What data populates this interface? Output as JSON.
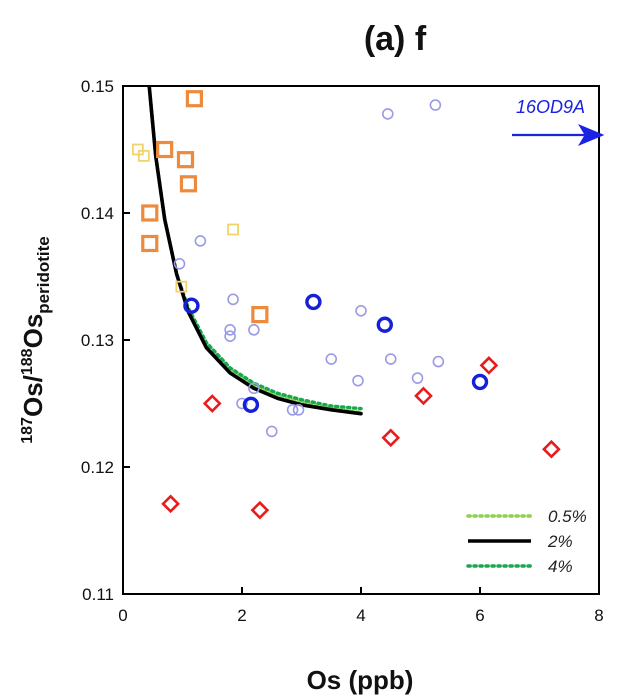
{
  "chart_data": {
    "type": "scatter",
    "title": "(a) f",
    "xlabel": "Os (ppb)",
    "ylabel": {
      "sup1": "187",
      "main1": "Os/",
      "sup2": "188",
      "main2": "Os",
      "sub": "peridotite"
    },
    "xlim": [
      0,
      8
    ],
    "ylim": [
      0.11,
      0.15
    ],
    "xticks": [
      "0",
      "2",
      "4",
      "6",
      "8"
    ],
    "yticks": [
      "0.11",
      "0.12",
      "0.13",
      "0.14",
      "0.15"
    ],
    "grid": false,
    "legend_position": "bottom-right",
    "colors": {
      "small_circle": "#9a9ae6",
      "large_circle": "#1520d8",
      "small_square": "#f2d36b",
      "large_square": "#ee8a3c",
      "diamond": "#e81c1c",
      "curve_05": "#8fd14f",
      "curve_2": "#000000",
      "curve_4": "#1aa84f",
      "annotation": "#1a22e6"
    },
    "annotation": {
      "text": "16OD9A",
      "arrow": "right"
    },
    "legend": [
      {
        "label": "0.5%",
        "style": "dotted",
        "color_key": "curve_05"
      },
      {
        "label": "2%",
        "style": "solid",
        "color_key": "curve_2"
      },
      {
        "label": "4%",
        "style": "dotted",
        "color_key": "curve_4"
      }
    ],
    "series": [
      {
        "marker": "small_circle",
        "points": [
          [
            0.95,
            0.136
          ],
          [
            1.3,
            0.1378
          ],
          [
            1.85,
            0.1332
          ],
          [
            1.8,
            0.1308
          ],
          [
            1.8,
            0.1303
          ],
          [
            2.2,
            0.1308
          ],
          [
            2.2,
            0.1262
          ],
          [
            2.0,
            0.125
          ],
          [
            2.5,
            0.1228
          ],
          [
            2.85,
            0.1245
          ],
          [
            2.95,
            0.1245
          ],
          [
            3.5,
            0.1285
          ],
          [
            3.95,
            0.1268
          ],
          [
            4.0,
            0.1323
          ],
          [
            4.45,
            0.1478
          ],
          [
            4.5,
            0.1285
          ],
          [
            4.95,
            0.127
          ],
          [
            5.25,
            0.1485
          ],
          [
            5.3,
            0.1283
          ]
        ]
      },
      {
        "marker": "large_circle",
        "points": [
          [
            1.15,
            0.1327
          ],
          [
            2.15,
            0.1249
          ],
          [
            3.2,
            0.133
          ],
          [
            4.4,
            0.1312
          ],
          [
            6.0,
            0.1267
          ]
        ]
      },
      {
        "marker": "small_square",
        "points": [
          [
            0.25,
            0.145
          ],
          [
            0.35,
            0.1445
          ],
          [
            1.85,
            0.1387
          ],
          [
            0.98,
            0.1342
          ]
        ]
      },
      {
        "marker": "large_square",
        "points": [
          [
            1.2,
            0.149
          ],
          [
            0.7,
            0.145
          ],
          [
            1.05,
            0.1442
          ],
          [
            1.1,
            0.1423
          ],
          [
            0.45,
            0.14
          ],
          [
            0.45,
            0.1376
          ],
          [
            2.3,
            0.132
          ]
        ]
      },
      {
        "marker": "diamond",
        "points": [
          [
            1.5,
            0.125
          ],
          [
            0.8,
            0.1171
          ],
          [
            2.3,
            0.1166
          ],
          [
            4.5,
            0.1223
          ],
          [
            5.05,
            0.1256
          ],
          [
            6.15,
            0.128
          ],
          [
            7.2,
            0.1214
          ]
        ]
      }
    ],
    "curves": [
      {
        "label": "0.5%",
        "color_key": "curve_05",
        "style": "dotted",
        "points": [
          [
            0.43,
            0.1505
          ],
          [
            0.55,
            0.1445
          ],
          [
            0.7,
            0.1395
          ],
          [
            0.9,
            0.1352
          ],
          [
            1.1,
            0.1323
          ],
          [
            1.4,
            0.1296
          ],
          [
            1.8,
            0.1276
          ],
          [
            2.2,
            0.1264
          ],
          [
            2.6,
            0.1256
          ],
          [
            3.0,
            0.1251
          ],
          [
            3.5,
            0.1246
          ],
          [
            4.0,
            0.1243
          ]
        ]
      },
      {
        "label": "4%",
        "color_key": "curve_4",
        "style": "dotted",
        "points": [
          [
            0.43,
            0.1505
          ],
          [
            0.55,
            0.1445
          ],
          [
            0.7,
            0.1395
          ],
          [
            0.9,
            0.1352
          ],
          [
            1.1,
            0.1325
          ],
          [
            1.4,
            0.1298
          ],
          [
            1.8,
            0.1278
          ],
          [
            2.2,
            0.1266
          ],
          [
            2.6,
            0.1258
          ],
          [
            3.0,
            0.1253
          ],
          [
            3.5,
            0.1248
          ],
          [
            4.0,
            0.1246
          ]
        ]
      },
      {
        "label": "2%",
        "color_key": "curve_2",
        "style": "solid",
        "points": [
          [
            0.43,
            0.1505
          ],
          [
            0.55,
            0.1445
          ],
          [
            0.7,
            0.1395
          ],
          [
            0.9,
            0.1352
          ],
          [
            1.1,
            0.1322
          ],
          [
            1.4,
            0.1294
          ],
          [
            1.8,
            0.1274
          ],
          [
            2.2,
            0.1262
          ],
          [
            2.6,
            0.1254
          ],
          [
            3.0,
            0.1249
          ],
          [
            3.5,
            0.1245
          ],
          [
            4.0,
            0.1242
          ]
        ]
      }
    ]
  }
}
